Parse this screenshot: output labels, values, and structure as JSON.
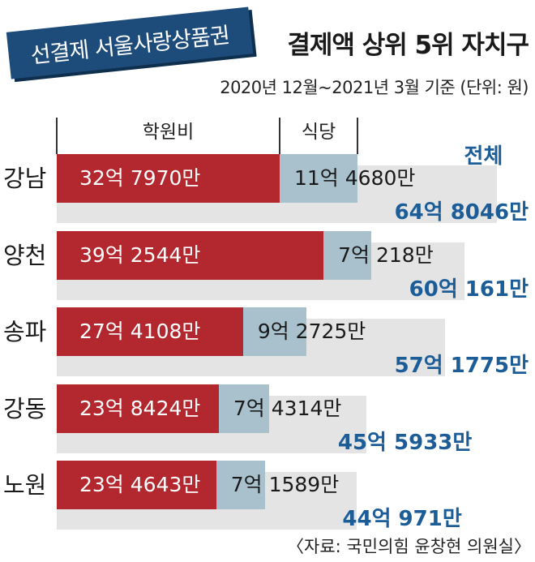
{
  "chart_data": {
    "type": "bar",
    "orientation": "horizontal",
    "stacked": true,
    "grid": false,
    "title_badge": "선결제 서울사랑상품권",
    "title": "결제액 상위 5위 자치구",
    "subtitle": "2020년 12월~2021년 3월 기준 (단위: 원)",
    "source": "〈자료: 국민의힘 윤창현 의원실〉",
    "categories": [
      "강남",
      "양천",
      "송파",
      "강동",
      "노원"
    ],
    "series": [
      {
        "name": "학원비",
        "color": "#b3282f",
        "text_color": "#ffffff",
        "values": [
          3279700000,
          3925440000,
          2741080000,
          2384240000,
          2346430000
        ],
        "labels": [
          "32억 7970만",
          "39억 2544만",
          "27억 4108만",
          "23억 8424만",
          "23억 4643만"
        ]
      },
      {
        "name": "식당",
        "color": "#a9c0cd",
        "text_color": "#1a1a1a",
        "values": [
          1146800000,
          702180000,
          927250000,
          743140000,
          715890000
        ],
        "labels": [
          "11억 4680만",
          "7억 218만",
          "9억 2725만",
          "7억 4314만",
          "7억 1589만"
        ]
      }
    ],
    "total": {
      "name": "전체",
      "color": "#e4e4e4",
      "label_color": "#1c5d98",
      "values": [
        6480460000,
        6001610000,
        5717750000,
        4559330000,
        4409710000
      ],
      "labels": [
        "64억 8046만",
        "60억 161만",
        "57억 1775만",
        "45억 5933만",
        "44억 971만"
      ]
    }
  },
  "colors": {
    "badge": "#1d4b7a",
    "badge_text": "#ffffff"
  }
}
